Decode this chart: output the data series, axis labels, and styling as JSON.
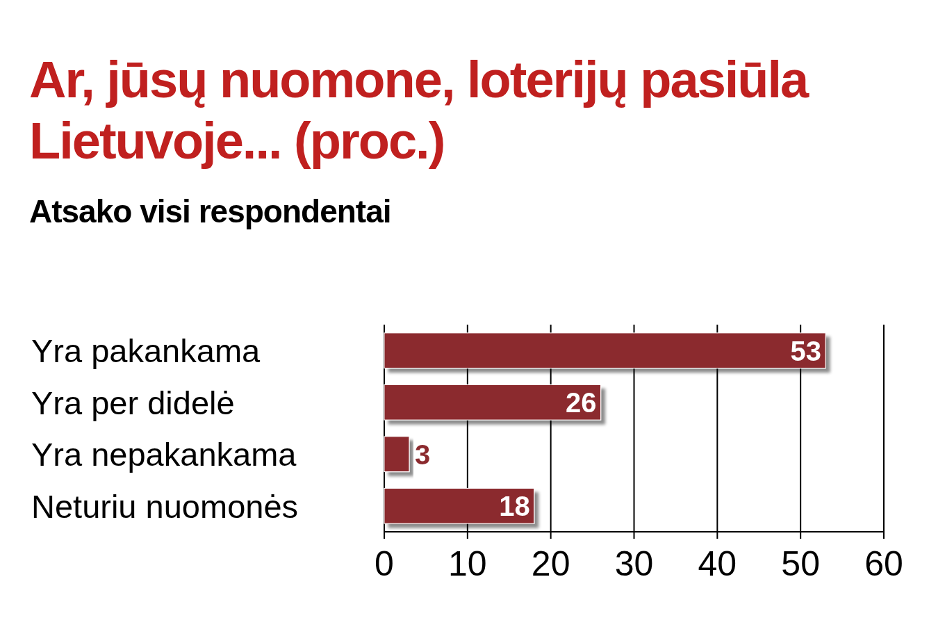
{
  "chart_data": {
    "type": "bar",
    "orientation": "horizontal",
    "title": "Ar, jūsų nuomone, loterijų pasiūla Lietuvoje... (proc.)",
    "subtitle": "Atsako visi respondentai",
    "categories": [
      "Yra pakankama",
      "Yra per didelė",
      "Yra nepakankama",
      "Neturiu nuomonės"
    ],
    "values": [
      53,
      26,
      3,
      18
    ],
    "color": "#8b2a2e",
    "xlim": [
      0,
      60
    ],
    "xticks": [
      0,
      10,
      20,
      30,
      40,
      50,
      60
    ],
    "grid": "x",
    "data_labels": true
  }
}
